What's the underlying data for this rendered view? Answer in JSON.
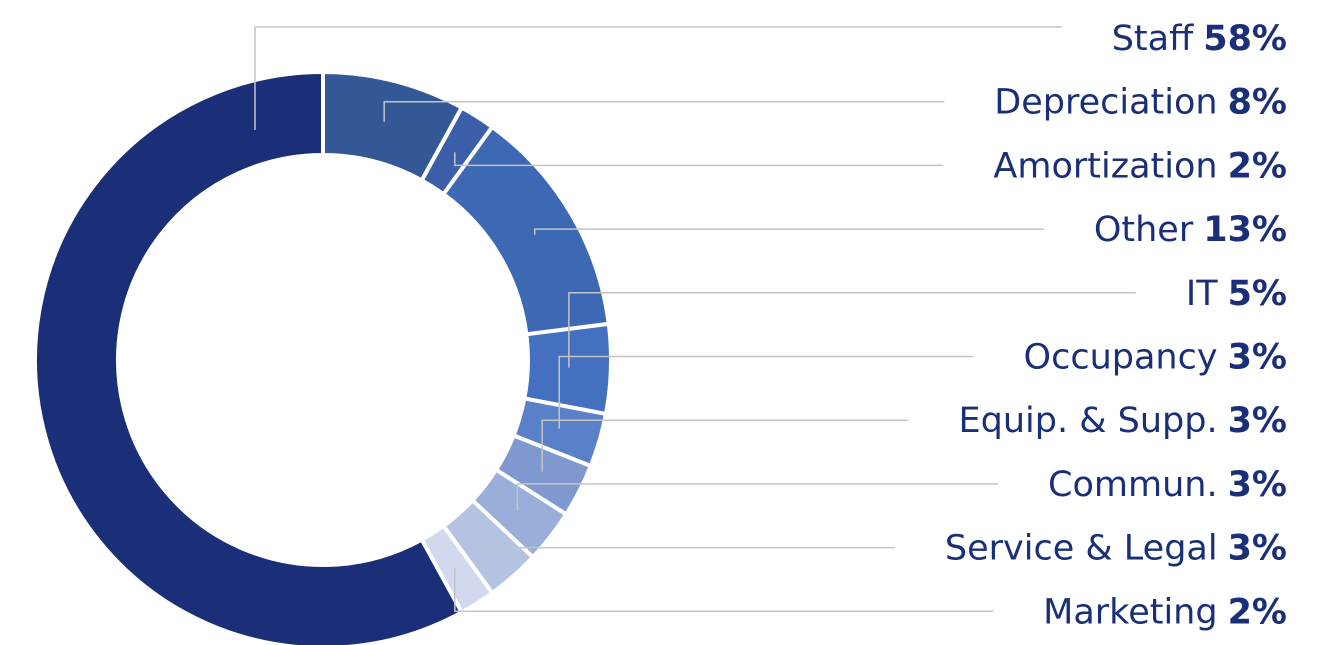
{
  "chart_data": {
    "type": "donut",
    "categories": [
      "Staff",
      "Depreciation",
      "Amortization",
      "Other",
      "IT",
      "Occupancy",
      "Equip. & Supp.",
      "Commun.",
      "Service & Legal",
      "Marketing"
    ],
    "values": [
      58,
      8,
      2,
      13,
      5,
      3,
      3,
      3,
      3,
      2
    ],
    "value_labels": [
      "58%",
      "8%",
      "2%",
      "13%",
      "5%",
      "3%",
      "3%",
      "3%",
      "3%",
      "2%"
    ],
    "colors": [
      "#1a2f78",
      "#345896",
      "#3a5fa8",
      "#3d68b4",
      "#4470c0",
      "#5a80c8",
      "#7f98d0",
      "#99aed8",
      "#b5c3e3",
      "#d0d9ee"
    ]
  }
}
